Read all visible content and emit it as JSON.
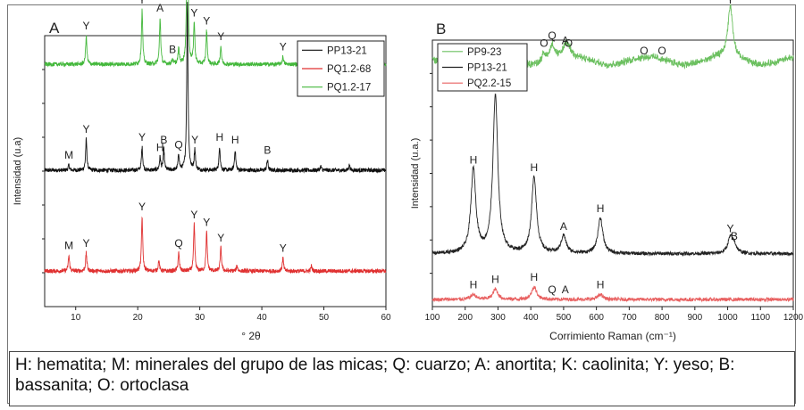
{
  "caption": "H: hematita; M: minerales del grupo de las micas; Q: cuarzo; A: anortita; K: caolinita; Y: yeso; B: bassanita; O: ortoclasa",
  "chart_data": [
    {
      "panel": "A",
      "type": "line",
      "xlabel": "° 2θ",
      "ylabel": "Intensidad (u.a)",
      "xlim": [
        5,
        60
      ],
      "xticks": [
        10,
        20,
        30,
        40,
        50,
        60
      ],
      "legend_position": "top-right",
      "series": [
        {
          "name": "PP13-21",
          "color": "#111111",
          "baseline": 0.5,
          "peaks": [
            {
              "x": 8.9,
              "h": 0.02,
              "label": "M"
            },
            {
              "x": 11.7,
              "h": 0.12,
              "label": "Y"
            },
            {
              "x": 20.7,
              "h": 0.09,
              "label": "Y"
            },
            {
              "x": 23.6,
              "h": 0.05,
              "label": "H"
            },
            {
              "x": 24.2,
              "h": 0.08,
              "label": "B"
            },
            {
              "x": 26.6,
              "h": 0.06,
              "label": "Q"
            },
            {
              "x": 28.0,
              "h": 0.65,
              "label": "A"
            },
            {
              "x": 29.2,
              "h": 0.08,
              "label": "Y"
            },
            {
              "x": 33.2,
              "h": 0.09,
              "label": "H"
            },
            {
              "x": 35.7,
              "h": 0.08,
              "label": "H"
            },
            {
              "x": 40.9,
              "h": 0.04,
              "label": "B"
            },
            {
              "x": 49.5,
              "h": 0.015,
              "label": ""
            },
            {
              "x": 54.1,
              "h": 0.02,
              "label": ""
            }
          ]
        },
        {
          "name": "PQ1.2-68",
          "color": "#e03030",
          "baseline": 0.11,
          "peaks": [
            {
              "x": 8.9,
              "h": 0.06,
              "label": "M"
            },
            {
              "x": 11.7,
              "h": 0.07,
              "label": "Y"
            },
            {
              "x": 20.7,
              "h": 0.21,
              "label": "Y"
            },
            {
              "x": 23.4,
              "h": 0.04,
              "label": ""
            },
            {
              "x": 26.6,
              "h": 0.07,
              "label": "Q"
            },
            {
              "x": 29.1,
              "h": 0.18,
              "label": "Y"
            },
            {
              "x": 31.1,
              "h": 0.15,
              "label": "Y"
            },
            {
              "x": 33.4,
              "h": 0.09,
              "label": "Y"
            },
            {
              "x": 36.0,
              "h": 0.02,
              "label": ""
            },
            {
              "x": 43.4,
              "h": 0.05,
              "label": "Y"
            },
            {
              "x": 48.0,
              "h": 0.02,
              "label": ""
            }
          ]
        },
        {
          "name": "PQ1.2-17",
          "color": "#44b83c",
          "baseline": 0.91,
          "peaks": [
            {
              "x": 11.7,
              "h": 0.11,
              "label": "Y"
            },
            {
              "x": 20.7,
              "h": 0.21,
              "label": "Y"
            },
            {
              "x": 23.6,
              "h": 0.18,
              "label": "A"
            },
            {
              "x": 25.6,
              "h": 0.02,
              "label": "B"
            },
            {
              "x": 26.6,
              "h": 0.06,
              "label": ""
            },
            {
              "x": 28.0,
              "h": 0.68,
              "label": "A"
            },
            {
              "x": 29.1,
              "h": 0.16,
              "label": "Y"
            },
            {
              "x": 31.1,
              "h": 0.13,
              "label": "Y"
            },
            {
              "x": 33.4,
              "h": 0.07,
              "label": "Y"
            },
            {
              "x": 43.4,
              "h": 0.03,
              "label": "Y"
            }
          ]
        }
      ]
    },
    {
      "panel": "B",
      "type": "line",
      "xlabel": "Corrimiento Raman (cm⁻¹)",
      "ylabel": "Intensidad (u.a.)",
      "xlim": [
        100,
        1200
      ],
      "xticks": [
        100,
        200,
        300,
        400,
        500,
        600,
        700,
        800,
        900,
        1000,
        1100,
        1200
      ],
      "legend_position": "top-left",
      "series": [
        {
          "name": "PP9-23",
          "color": "#6cc060",
          "baseline": 0.94,
          "peaks": [
            {
              "x": 440,
              "h": 0.03,
              "label": "O"
            },
            {
              "x": 465,
              "h": 0.06,
              "label": "Q"
            },
            {
              "x": 505,
              "h": 0.04,
              "label": "A"
            },
            {
              "x": 515,
              "h": 0.03,
              "label": "O"
            },
            {
              "x": 745,
              "h": 0.0,
              "label": "O"
            },
            {
              "x": 800,
              "h": 0.0,
              "label": "O"
            },
            {
              "x": 1008,
              "h": 0.2,
              "label": "Y"
            }
          ]
        },
        {
          "name": "PP13-21",
          "color": "#222222",
          "baseline": 0.18,
          "peaks": [
            {
              "x": 225,
              "h": 0.33,
              "label": "H"
            },
            {
              "x": 292,
              "h": 0.62,
              "label": "H"
            },
            {
              "x": 410,
              "h": 0.3,
              "label": "H"
            },
            {
              "x": 500,
              "h": 0.07,
              "label": "A"
            },
            {
              "x": 612,
              "h": 0.14,
              "label": "H"
            },
            {
              "x": 1008,
              "h": 0.06,
              "label": "Y"
            },
            {
              "x": 1020,
              "h": 0.03,
              "label": "B"
            }
          ]
        },
        {
          "name": "PQ2.2-15",
          "color": "#e86060",
          "baseline": 0.0,
          "peaks": [
            {
              "x": 225,
              "h": 0.02,
              "label": "H"
            },
            {
              "x": 292,
              "h": 0.04,
              "label": "H"
            },
            {
              "x": 410,
              "h": 0.05,
              "label": "H"
            },
            {
              "x": 465,
              "h": 0.0,
              "label": "Q"
            },
            {
              "x": 505,
              "h": 0.0,
              "label": "A"
            },
            {
              "x": 612,
              "h": 0.02,
              "label": "H"
            }
          ]
        }
      ]
    }
  ]
}
